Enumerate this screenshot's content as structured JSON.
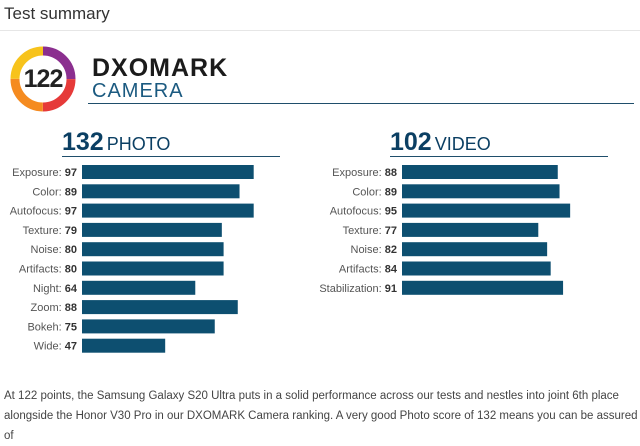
{
  "section_title": "Test summary",
  "badge": {
    "score": "122",
    "ring_colors": [
      "#8b2f8f",
      "#e63a39",
      "#f58b20",
      "#f7c31c"
    ]
  },
  "brand": {
    "name": "DXOMARK",
    "category": "CAMERA"
  },
  "chart_data": [
    {
      "type": "bar",
      "orientation": "horizontal",
      "score": "132",
      "title": "PHOTO",
      "categories": [
        "Exposure",
        "Color",
        "Autofocus",
        "Texture",
        "Noise",
        "Artifacts",
        "Night",
        "Zoom",
        "Bokeh",
        "Wide"
      ],
      "values": [
        97,
        89,
        97,
        79,
        80,
        80,
        64,
        88,
        75,
        47
      ],
      "xlim": [
        0,
        100
      ],
      "grid": false,
      "bar_color": "#0d4f70"
    },
    {
      "type": "bar",
      "orientation": "horizontal",
      "score": "102",
      "title": "VIDEO",
      "categories": [
        "Exposure",
        "Color",
        "Autofocus",
        "Texture",
        "Noise",
        "Artifacts",
        "Stabilization"
      ],
      "values": [
        88,
        89,
        95,
        77,
        82,
        84,
        91
      ],
      "xlim": [
        0,
        100
      ],
      "grid": false,
      "bar_color": "#0d4f70"
    }
  ],
  "summary_text": "At 122 points, the Samsung Galaxy S20 Ultra puts in a solid performance across our tests and nestles into joint 6th place alongside the Honor V30 Pro in our DXOMARK Camera ranking. A very good Photo score of 132 means you can be assured of"
}
